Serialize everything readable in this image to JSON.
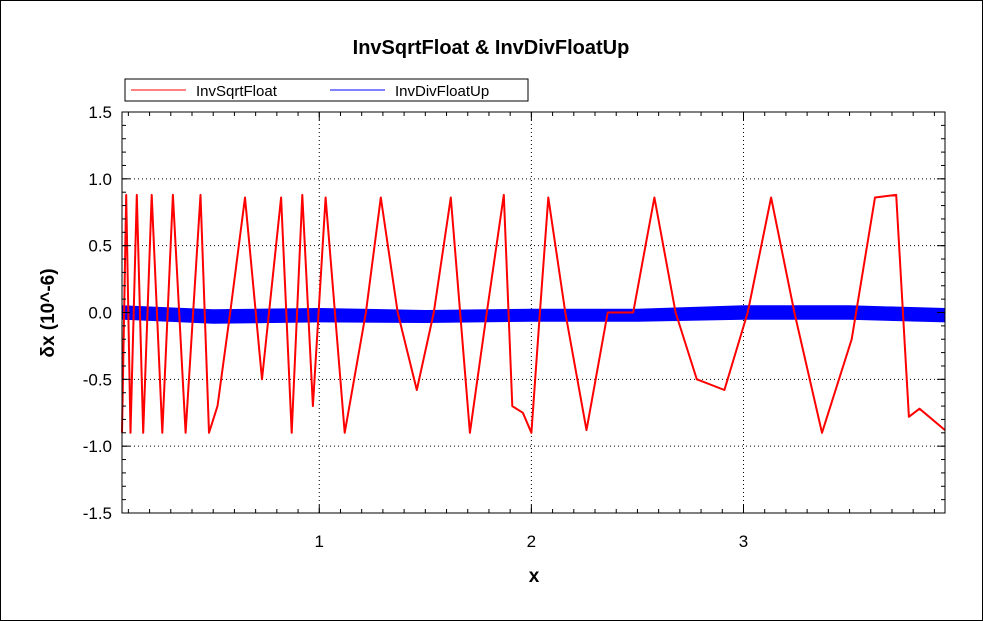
{
  "chart_data": {
    "type": "line",
    "title": "InvSqrtFloat & InvDivFloatUp",
    "xlabel": "x",
    "ylabel": "δx (10^-6)",
    "xlim": [
      0.07,
      3.95
    ],
    "ylim": [
      -1.5,
      1.5
    ],
    "x_ticks": [
      1,
      2,
      3
    ],
    "x_tick_labels": [
      "1",
      "2",
      "3"
    ],
    "y_ticks": [
      1.5,
      1.0,
      0.5,
      0.0,
      -0.5,
      -1.0,
      -1.5
    ],
    "y_tick_labels": [
      "1.5",
      "1.0",
      "0.5",
      "0.0",
      "-0.5",
      "-1.0",
      "-1.5"
    ],
    "grid": true,
    "legend_position": "top-left",
    "series": [
      {
        "name": "InvSqrtFloat",
        "color": "#ff0000",
        "x": [
          0.07,
          0.09,
          0.11,
          0.14,
          0.17,
          0.21,
          0.26,
          0.31,
          0.37,
          0.44,
          0.48,
          0.52,
          0.58,
          0.65,
          0.73,
          0.82,
          0.87,
          0.92,
          0.97,
          1.03,
          1.12,
          1.22,
          1.29,
          1.37,
          1.46,
          1.54,
          1.62,
          1.71,
          1.79,
          1.87,
          1.91,
          1.96,
          2.0,
          2.04,
          2.08,
          2.16,
          2.26,
          2.36,
          2.48,
          2.58,
          2.68,
          2.78,
          2.91,
          3.02,
          3.13,
          3.24,
          3.37,
          3.51,
          3.62,
          3.72,
          3.78,
          3.83,
          3.95
        ],
        "y": [
          -0.9,
          0.88,
          -0.9,
          0.88,
          -0.9,
          0.88,
          -0.9,
          0.88,
          -0.9,
          0.88,
          -0.9,
          -0.7,
          0.0,
          0.86,
          -0.5,
          0.86,
          -0.9,
          0.88,
          -0.7,
          0.86,
          -0.9,
          0.0,
          0.86,
          0.0,
          -0.58,
          0.0,
          0.86,
          -0.9,
          0.0,
          0.88,
          -0.7,
          -0.75,
          -0.9,
          0.0,
          0.86,
          0.0,
          -0.88,
          0.0,
          0.0,
          0.86,
          0.0,
          -0.5,
          -0.58,
          0.0,
          0.86,
          0.0,
          -0.9,
          -0.2,
          0.86,
          0.88,
          -0.78,
          -0.72,
          -0.88
        ]
      },
      {
        "name": "InvDivFloatUp",
        "color": "#0000ff",
        "x": [
          0.07,
          0.5,
          1.0,
          1.5,
          2.0,
          2.5,
          3.0,
          3.5,
          3.95
        ],
        "y": [
          0.0,
          -0.03,
          -0.02,
          -0.03,
          -0.02,
          -0.02,
          0.0,
          0.0,
          -0.02
        ],
        "band_halfwidth": [
          0.05,
          0.05,
          0.05,
          0.045,
          0.045,
          0.045,
          0.05,
          0.05,
          0.05
        ]
      }
    ]
  }
}
